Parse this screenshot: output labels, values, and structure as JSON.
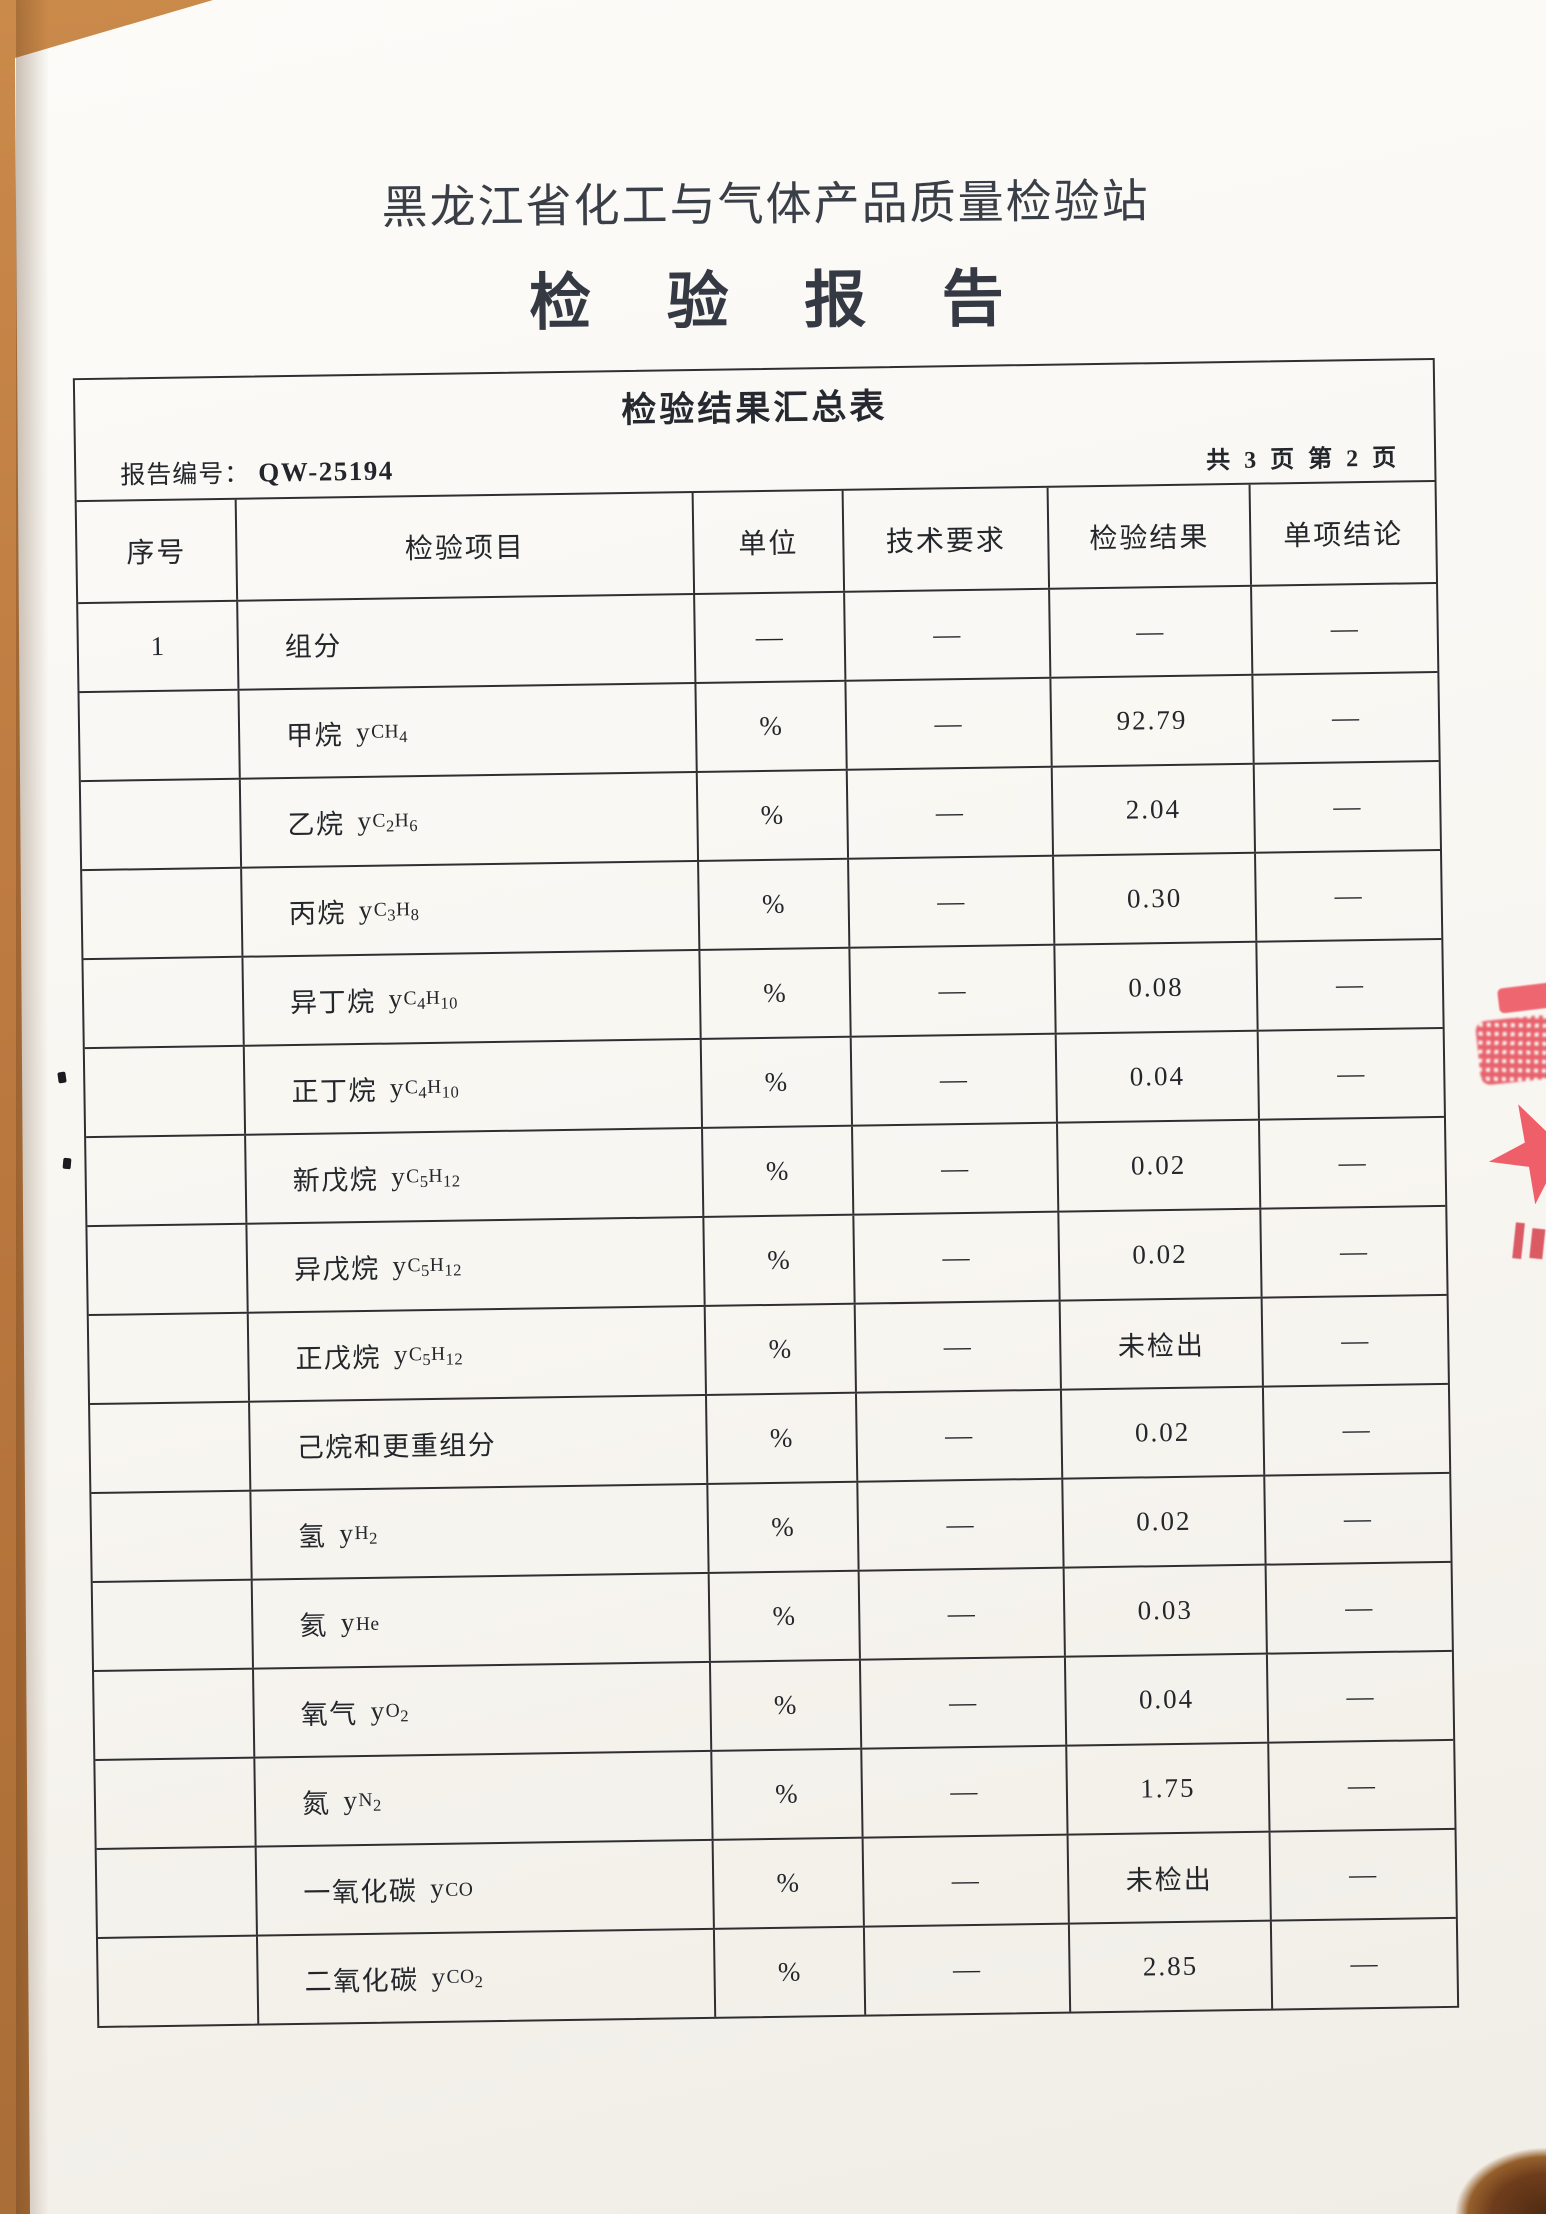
{
  "page": {
    "org_name": "黑龙江省化工与气体产品质量检验站",
    "report_title": "检 验 报 告"
  },
  "table": {
    "title": "检验结果汇总表",
    "report_no_label": "报告编号：",
    "report_no": "QW-25194",
    "pagination": "共 3 页  第 2 页",
    "columns": [
      "序号",
      "检验项目",
      "单位",
      "技术要求",
      "检验结果",
      "单项结论"
    ],
    "rows": [
      {
        "no": "1",
        "item": "组分",
        "symbol": "",
        "formula": "",
        "unit": "—",
        "requirement": "—",
        "result": "—",
        "conclusion": "—"
      },
      {
        "no": "",
        "item": "甲烷",
        "symbol": "y",
        "formula": "CH4",
        "unit": "%",
        "requirement": "—",
        "result": "92.79",
        "conclusion": "—"
      },
      {
        "no": "",
        "item": "乙烷",
        "symbol": "y",
        "formula": "C2H6",
        "unit": "%",
        "requirement": "—",
        "result": "2.04",
        "conclusion": "—"
      },
      {
        "no": "",
        "item": "丙烷",
        "symbol": "y",
        "formula": "C3H8",
        "unit": "%",
        "requirement": "—",
        "result": "0.30",
        "conclusion": "—"
      },
      {
        "no": "",
        "item": "异丁烷",
        "symbol": "y",
        "formula": "C4H10",
        "unit": "%",
        "requirement": "—",
        "result": "0.08",
        "conclusion": "—"
      },
      {
        "no": "",
        "item": "正丁烷",
        "symbol": "y",
        "formula": "C4H10",
        "unit": "%",
        "requirement": "—",
        "result": "0.04",
        "conclusion": "—"
      },
      {
        "no": "",
        "item": "新戊烷",
        "symbol": "y",
        "formula": "C5H12",
        "unit": "%",
        "requirement": "—",
        "result": "0.02",
        "conclusion": "—"
      },
      {
        "no": "",
        "item": "异戊烷",
        "symbol": "y",
        "formula": "C5H12",
        "unit": "%",
        "requirement": "—",
        "result": "0.02",
        "conclusion": "—"
      },
      {
        "no": "",
        "item": "正戊烷",
        "symbol": "y",
        "formula": "C5H12",
        "unit": "%",
        "requirement": "—",
        "result": "未检出",
        "conclusion": "—"
      },
      {
        "no": "",
        "item": "己烷和更重组分",
        "symbol": "",
        "formula": "",
        "unit": "%",
        "requirement": "—",
        "result": "0.02",
        "conclusion": "—"
      },
      {
        "no": "",
        "item": "氢",
        "symbol": "y",
        "formula": "H2",
        "unit": "%",
        "requirement": "—",
        "result": "0.02",
        "conclusion": "—"
      },
      {
        "no": "",
        "item": "氦",
        "symbol": "y",
        "formula": "He",
        "unit": "%",
        "requirement": "—",
        "result": "0.03",
        "conclusion": "—"
      },
      {
        "no": "",
        "item": "氧气",
        "symbol": "y",
        "formula": "O2",
        "unit": "%",
        "requirement": "—",
        "result": "0.04",
        "conclusion": "—"
      },
      {
        "no": "",
        "item": "氮",
        "symbol": "y",
        "formula": "N2",
        "unit": "%",
        "requirement": "—",
        "result": "1.75",
        "conclusion": "—"
      },
      {
        "no": "",
        "item": "一氧化碳",
        "symbol": "y",
        "formula": "CO",
        "unit": "%",
        "requirement": "—",
        "result": "未检出",
        "conclusion": "—"
      },
      {
        "no": "",
        "item": "二氧化碳",
        "symbol": "y",
        "formula": "CO2",
        "unit": "%",
        "requirement": "—",
        "result": "2.85",
        "conclusion": "—"
      }
    ]
  },
  "stamp": {
    "type": "red-seal-fragment-partially-visible",
    "color": "#e95561"
  },
  "colors": {
    "paper": "#f8f6f1",
    "background_brown": "#bd7a41",
    "ink": "#23262b",
    "table_line": "#2f2e31",
    "seal_red": "#e95561"
  }
}
